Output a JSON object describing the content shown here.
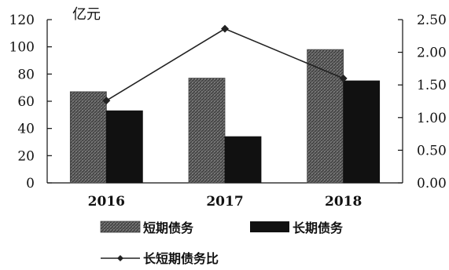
{
  "chart_data": {
    "type": "bar",
    "categories": [
      "2016",
      "2017",
      "2018"
    ],
    "unit_label": "亿元",
    "series": [
      {
        "name": "短期债务",
        "kind": "bar",
        "axis": "left",
        "values": [
          67,
          77,
          98
        ],
        "color": "#555555"
      },
      {
        "name": "长期债务",
        "kind": "bar",
        "axis": "left",
        "values": [
          53,
          34,
          75
        ],
        "color": "#111111"
      },
      {
        "name": "长短期债务比",
        "kind": "line",
        "axis": "right",
        "values": [
          1.26,
          2.36,
          1.6
        ],
        "color": "#222222"
      }
    ],
    "y_left": {
      "range": [
        0,
        120
      ],
      "ticks": [
        "0",
        "20",
        "40",
        "60",
        "80",
        "100",
        "120"
      ]
    },
    "y_right": {
      "range": [
        0,
        2.5
      ],
      "ticks": [
        "0.00",
        "0.50",
        "1.00",
        "1.50",
        "2.00",
        "2.50"
      ]
    },
    "grid": false,
    "legend_position": "bottom"
  }
}
